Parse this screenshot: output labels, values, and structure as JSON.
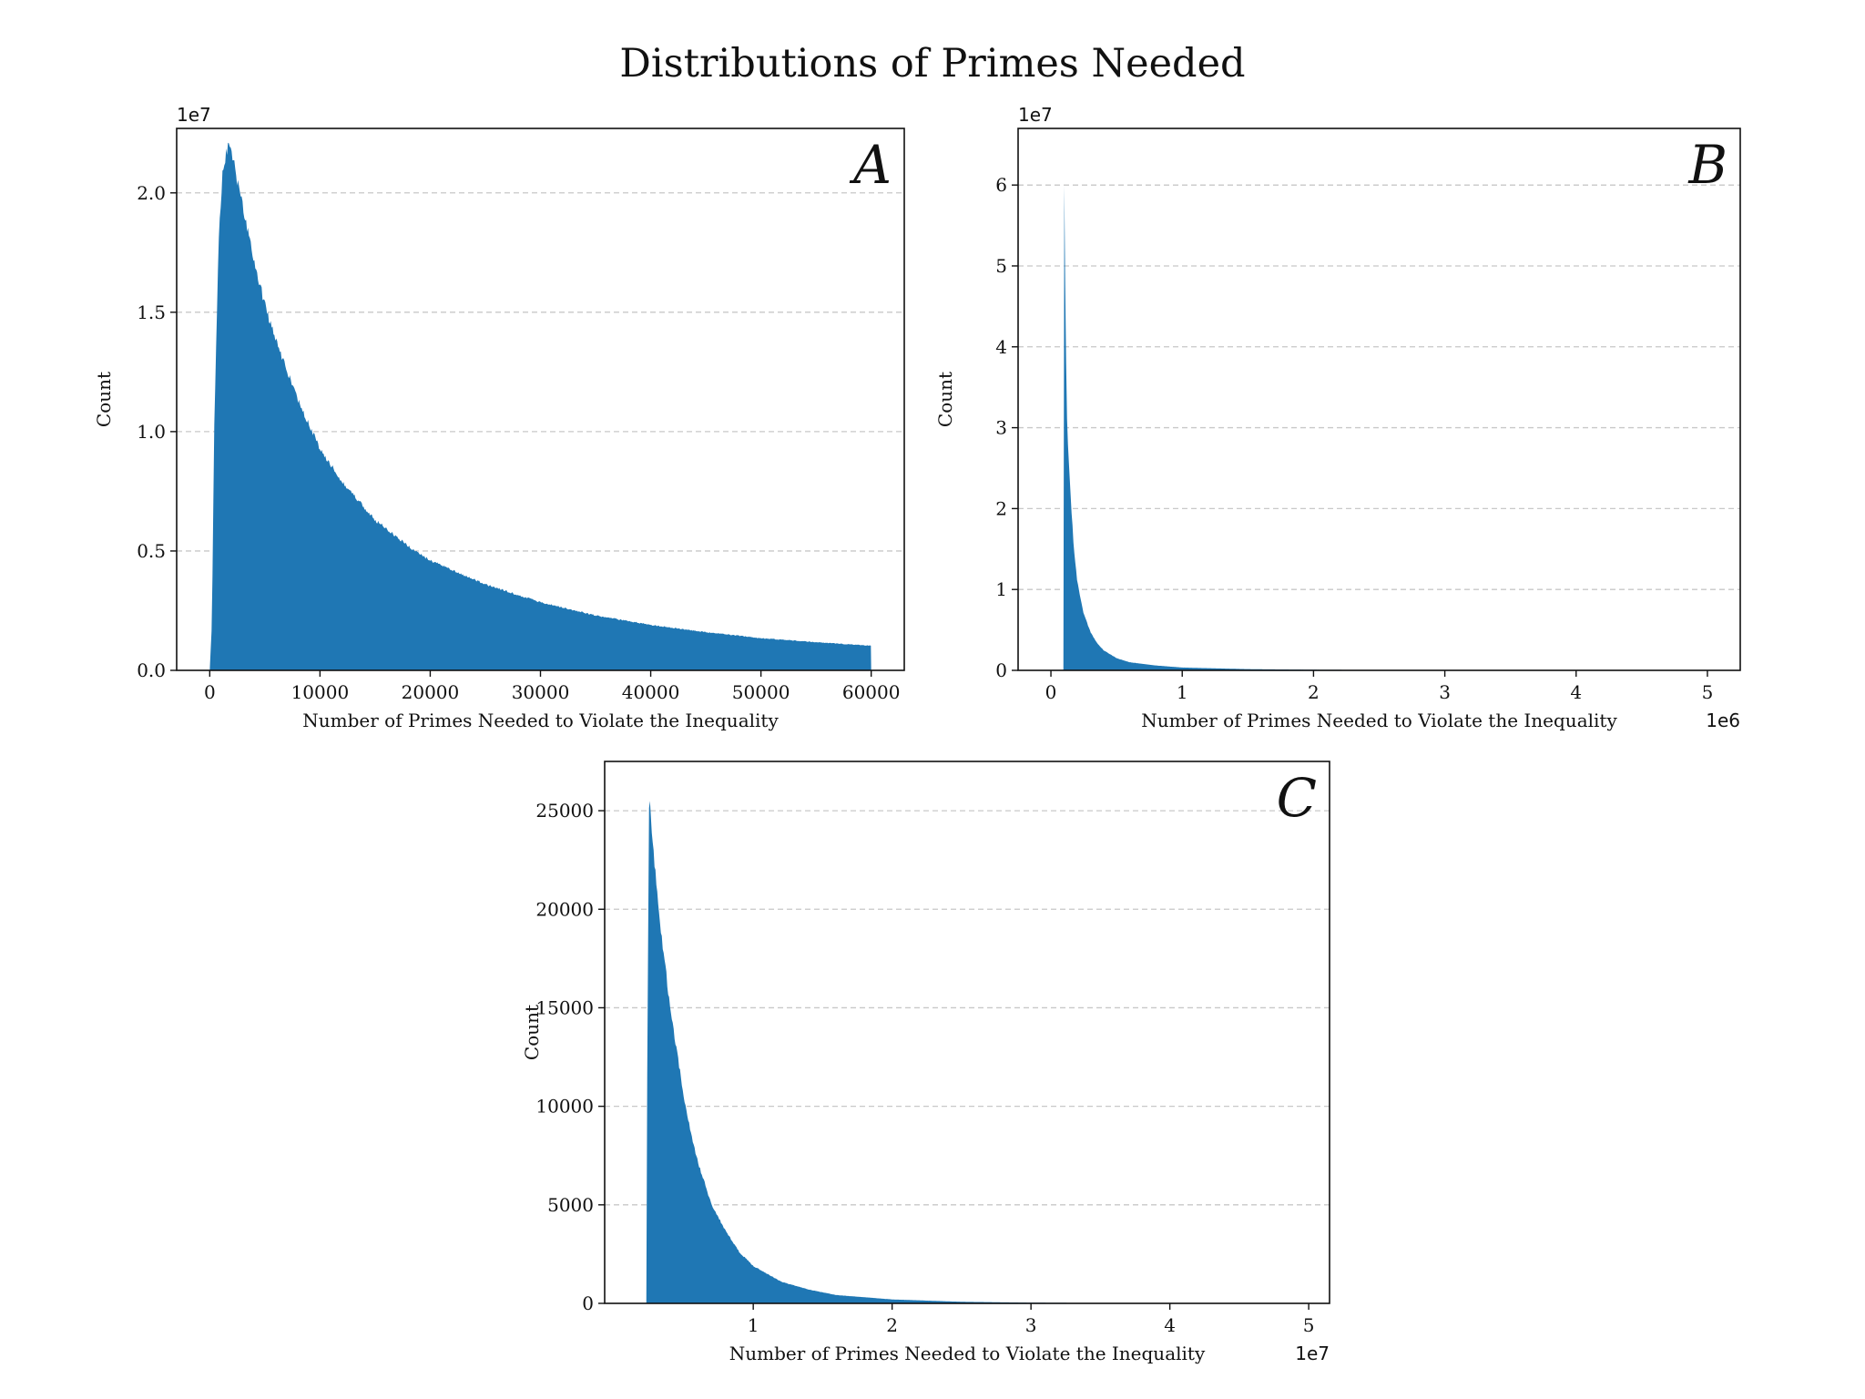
{
  "figure": {
    "title": "Distributions of Primes Needed",
    "bar_color": "#1f77b4",
    "grid_color": "#c8c8c8"
  },
  "chart_data": [
    {
      "id": "A",
      "type": "bar",
      "panel_label": "A",
      "xlabel": "Number of Primes Needed to Violate the Inequality",
      "ylabel": "Count",
      "y_multiplier": "1e7",
      "x_multiplier": "",
      "xlim": [
        -3000,
        63000
      ],
      "ylim": [
        0,
        22700000.0
      ],
      "xticks": [
        0,
        10000,
        20000,
        30000,
        40000,
        50000,
        60000
      ],
      "xtick_labels": [
        "0",
        "10000",
        "20000",
        "30000",
        "40000",
        "50000",
        "60000"
      ],
      "yticks": [
        0,
        5000000,
        10000000,
        15000000,
        20000000
      ],
      "ytick_labels": [
        "0.0",
        "0.5",
        "1.0",
        "1.5",
        "2.0"
      ],
      "grid": "y-dashed",
      "x": [
        0,
        200,
        400,
        800,
        1200,
        1600,
        2000,
        2500,
        3000,
        4000,
        5000,
        6000,
        8000,
        10000,
        12000,
        15000,
        18000,
        20000,
        25000,
        30000,
        35000,
        40000,
        45000,
        50000,
        55000,
        60000
      ],
      "values": [
        0,
        2000000,
        10000000,
        18000000,
        21000000,
        21900000,
        21700000,
        20500000,
        19400000,
        17200000,
        15300000,
        13800000,
        11300000,
        9300000,
        7900000,
        6300000,
        5200000,
        4600000,
        3600000,
        2850000,
        2300000,
        1900000,
        1600000,
        1350000,
        1180000,
        1030000
      ]
    },
    {
      "id": "B",
      "type": "bar",
      "panel_label": "B",
      "xlabel": "Number of Primes Needed to Violate the Inequality",
      "ylabel": "Count",
      "y_multiplier": "1e7",
      "x_multiplier": "1e6",
      "xlim": [
        -250000,
        5250000
      ],
      "ylim": [
        0,
        67000000.0
      ],
      "xticks": [
        0,
        1000000,
        2000000,
        3000000,
        4000000,
        5000000
      ],
      "xtick_labels": [
        "0",
        "1",
        "2",
        "3",
        "4",
        "5"
      ],
      "yticks": [
        0,
        10000000,
        20000000,
        30000000,
        40000000,
        50000000,
        60000000
      ],
      "ytick_labels": [
        "0",
        "1",
        "2",
        "3",
        "4",
        "5",
        "6"
      ],
      "grid": "y-dashed",
      "x": [
        95000,
        100000,
        105000,
        110000,
        120000,
        130000,
        150000,
        175000,
        200000,
        250000,
        300000,
        350000,
        400000,
        500000,
        600000,
        800000,
        1000000,
        1500000,
        2000000,
        2500000,
        3000000,
        4000000,
        5000000
      ],
      "values": [
        0,
        63500000,
        55000000,
        45000000,
        33000000,
        27500000,
        21500000,
        15000000,
        11000000,
        7000000,
        4800000,
        3400000,
        2500000,
        1500000,
        1000000,
        600000,
        350000,
        150000,
        80000,
        40000,
        20000,
        8000,
        3000
      ]
    },
    {
      "id": "C",
      "type": "bar",
      "panel_label": "C",
      "xlabel": "Number of Primes Needed to Violate the Inequality",
      "ylabel": "Count",
      "y_multiplier": "",
      "x_multiplier": "1e7",
      "xlim": [
        -700000,
        51500000
      ],
      "ylim": [
        0,
        27500
      ],
      "xticks": [
        10000000,
        20000000,
        30000000,
        40000000,
        50000000
      ],
      "xtick_labels": [
        "1",
        "2",
        "3",
        "4",
        "5"
      ],
      "yticks": [
        0,
        5000,
        10000,
        15000,
        20000,
        25000
      ],
      "ytick_labels": [
        "0",
        "5000",
        "10000",
        "15000",
        "20000",
        "25000"
      ],
      "grid": "y-dashed",
      "x": [
        2300000,
        2350000,
        2500000,
        2700000,
        3000000,
        3300000,
        3700000,
        4000000,
        4500000,
        5000000,
        5500000,
        6000000,
        7000000,
        8000000,
        9000000,
        10000000,
        12000000,
        14000000,
        16000000,
        20000000,
        25000000,
        30000000,
        35000000,
        40000000,
        45000000,
        50000000
      ],
      "values": [
        0,
        10000,
        25800,
        24000,
        21500,
        19000,
        17000,
        15000,
        12800,
        10500,
        8700,
        7200,
        5000,
        3700,
        2600,
        1900,
        1100,
        700,
        420,
        200,
        80,
        35,
        18,
        10,
        6,
        3
      ]
    }
  ]
}
